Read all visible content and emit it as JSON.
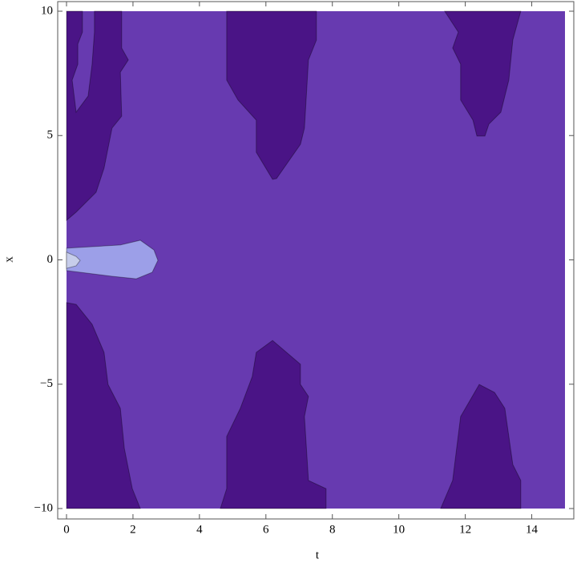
{
  "chart_data": {
    "type": "contour",
    "xlabel": "t",
    "ylabel": "x",
    "xlim": [
      0,
      15
    ],
    "ylim": [
      -10,
      10
    ],
    "xticks": [
      0,
      2,
      4,
      6,
      8,
      10,
      12,
      14
    ],
    "yticks": [
      {
        "value": -10,
        "label": "−10"
      },
      {
        "value": -5,
        "label": "−5"
      },
      0,
      5,
      10
    ],
    "background": "#673ab0",
    "regions": [
      {
        "color": "#4a1486",
        "points": [
          [
            0,
            10
          ],
          [
            0.48,
            10
          ],
          [
            0.48,
            9.16
          ],
          [
            0.34,
            8.68
          ],
          [
            0.34,
            7.87
          ],
          [
            0.17,
            7.23
          ],
          [
            0.29,
            5.94
          ],
          [
            0.65,
            6.59
          ],
          [
            0.77,
            7.87
          ],
          [
            0.84,
            9.16
          ],
          [
            0.84,
            10
          ],
          [
            1.66,
            10
          ],
          [
            1.66,
            8.52
          ],
          [
            1.86,
            8.04
          ],
          [
            1.62,
            7.55
          ],
          [
            1.66,
            5.78
          ],
          [
            1.37,
            5.3
          ],
          [
            1.13,
            3.69
          ],
          [
            0.89,
            2.72
          ],
          [
            0.29,
            1.92
          ],
          [
            0,
            1.59
          ]
        ]
      },
      {
        "color": "#4a1486",
        "points": [
          [
            4.82,
            10
          ],
          [
            7.52,
            10
          ],
          [
            7.52,
            8.84
          ],
          [
            7.28,
            8.04
          ],
          [
            7.16,
            5.3
          ],
          [
            7.04,
            4.65
          ],
          [
            6.32,
            3.27
          ],
          [
            6.2,
            3.24
          ],
          [
            5.71,
            4.33
          ],
          [
            5.71,
            5.62
          ],
          [
            5.16,
            6.43
          ],
          [
            4.82,
            7.23
          ]
        ]
      },
      {
        "color": "#4a1486",
        "points": [
          [
            11.38,
            10
          ],
          [
            13.67,
            10
          ],
          [
            13.43,
            8.84
          ],
          [
            13.31,
            7.23
          ],
          [
            13.07,
            5.94
          ],
          [
            12.71,
            5.46
          ],
          [
            12.59,
            4.98
          ],
          [
            12.35,
            4.98
          ],
          [
            12.23,
            5.62
          ],
          [
            11.86,
            6.43
          ],
          [
            11.86,
            7.87
          ],
          [
            11.62,
            8.52
          ],
          [
            11.79,
            9.16
          ]
        ]
      },
      {
        "color": "#4a1486",
        "points": [
          [
            0,
            -1.72
          ],
          [
            0.29,
            -1.79
          ],
          [
            0.77,
            -2.59
          ],
          [
            1.13,
            -3.72
          ],
          [
            1.25,
            -5.01
          ],
          [
            1.62,
            -5.97
          ],
          [
            1.74,
            -7.58
          ],
          [
            1.98,
            -9.2
          ],
          [
            2.22,
            -10
          ],
          [
            0,
            -10
          ]
        ]
      },
      {
        "color": "#4a1486",
        "points": [
          [
            6.2,
            -3.24
          ],
          [
            7.04,
            -4.2
          ],
          [
            7.04,
            -5.01
          ],
          [
            7.28,
            -5.49
          ],
          [
            7.16,
            -6.3
          ],
          [
            7.28,
            -8.87
          ],
          [
            7.81,
            -9.2
          ],
          [
            7.81,
            -10
          ],
          [
            4.63,
            -10
          ],
          [
            4.82,
            -9.2
          ],
          [
            4.82,
            -7.1
          ],
          [
            5.23,
            -5.97
          ],
          [
            5.59,
            -4.69
          ],
          [
            5.71,
            -3.72
          ]
        ]
      },
      {
        "color": "#4a1486",
        "points": [
          [
            12.42,
            -5.01
          ],
          [
            12.88,
            -5.33
          ],
          [
            13.19,
            -5.97
          ],
          [
            13.43,
            -8.23
          ],
          [
            13.67,
            -8.87
          ],
          [
            13.67,
            -10
          ],
          [
            11.26,
            -10
          ],
          [
            11.62,
            -8.87
          ],
          [
            11.74,
            -7.58
          ],
          [
            11.86,
            -6.3
          ]
        ]
      },
      {
        "color": "#9c9fe8",
        "points": [
          [
            0,
            0.47
          ],
          [
            1.62,
            0.6
          ],
          [
            2.22,
            0.79
          ],
          [
            2.63,
            0.4
          ],
          [
            2.75,
            -0.02
          ],
          [
            2.58,
            -0.5
          ],
          [
            2.1,
            -0.76
          ],
          [
            1.37,
            -0.66
          ],
          [
            0.41,
            -0.5
          ],
          [
            0,
            -0.43
          ]
        ]
      },
      {
        "color": "#c7cdea",
        "points": [
          [
            0,
            0.31
          ],
          [
            0.29,
            0.14
          ],
          [
            0.41,
            -0.02
          ],
          [
            0.29,
            -0.24
          ],
          [
            0,
            -0.34
          ]
        ]
      }
    ]
  }
}
